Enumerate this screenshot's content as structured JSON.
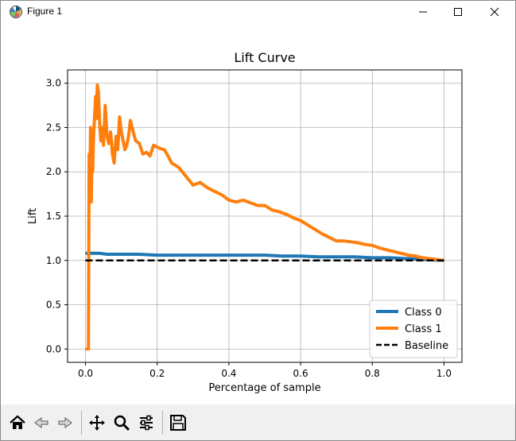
{
  "window": {
    "title": "Figure 1",
    "controls": [
      "minimize-icon",
      "maximize-icon",
      "close-icon"
    ]
  },
  "toolbar": {
    "buttons": [
      {
        "icon": "home-icon"
      },
      {
        "icon": "back-arrow-icon"
      },
      {
        "icon": "forward-arrow-icon"
      },
      {
        "icon": "pan-icon"
      },
      {
        "icon": "zoom-icon"
      },
      {
        "icon": "configure-subplots-icon"
      },
      {
        "icon": "save-icon"
      }
    ]
  },
  "chart_data": {
    "type": "line",
    "title": "Lift Curve",
    "xlabel": "Percentage of sample",
    "ylabel": "Lift",
    "xlim": [
      -0.05,
      1.05
    ],
    "ylim": [
      -0.15,
      3.15
    ],
    "xticks": [
      0.0,
      0.2,
      0.4,
      0.6,
      0.8,
      1.0
    ],
    "xtick_labels": [
      "0.0",
      "0.2",
      "0.4",
      "0.6",
      "0.8",
      "1.0"
    ],
    "yticks": [
      0.0,
      0.5,
      1.0,
      1.5,
      2.0,
      2.5,
      3.0
    ],
    "ytick_labels": [
      "0.0",
      "0.5",
      "1.0",
      "1.5",
      "2.0",
      "2.5",
      "3.0"
    ],
    "grid": true,
    "legend_position": "lower right",
    "series": [
      {
        "name": "Class 0",
        "color": "#1f77b4",
        "style": "solid",
        "x": [
          0.0,
          0.01,
          0.02,
          0.04,
          0.06,
          0.1,
          0.15,
          0.2,
          0.25,
          0.3,
          0.35,
          0.4,
          0.45,
          0.5,
          0.55,
          0.6,
          0.65,
          0.7,
          0.75,
          0.8,
          0.85,
          0.9,
          0.95,
          1.0
        ],
        "y": [
          1.08,
          1.08,
          1.08,
          1.08,
          1.07,
          1.07,
          1.07,
          1.06,
          1.06,
          1.06,
          1.06,
          1.06,
          1.06,
          1.06,
          1.05,
          1.05,
          1.04,
          1.04,
          1.04,
          1.03,
          1.03,
          1.02,
          1.01,
          1.0
        ]
      },
      {
        "name": "Class 1",
        "color": "#ff7f0e",
        "style": "solid",
        "x": [
          0.0,
          0.008,
          0.01,
          0.012,
          0.014,
          0.016,
          0.018,
          0.02,
          0.022,
          0.025,
          0.028,
          0.03,
          0.033,
          0.036,
          0.04,
          0.043,
          0.046,
          0.05,
          0.055,
          0.06,
          0.065,
          0.07,
          0.075,
          0.08,
          0.085,
          0.09,
          0.095,
          0.1,
          0.105,
          0.11,
          0.115,
          0.12,
          0.125,
          0.13,
          0.135,
          0.14,
          0.15,
          0.16,
          0.17,
          0.18,
          0.19,
          0.2,
          0.21,
          0.22,
          0.23,
          0.24,
          0.26,
          0.28,
          0.3,
          0.32,
          0.34,
          0.36,
          0.38,
          0.4,
          0.42,
          0.44,
          0.46,
          0.48,
          0.5,
          0.52,
          0.54,
          0.56,
          0.58,
          0.6,
          0.62,
          0.64,
          0.66,
          0.68,
          0.7,
          0.72,
          0.74,
          0.76,
          0.78,
          0.8,
          0.82,
          0.84,
          0.86,
          0.88,
          0.9,
          0.92,
          0.94,
          0.96,
          0.98,
          1.0
        ],
        "y": [
          0.0,
          0.0,
          2.2,
          1.7,
          2.5,
          1.66,
          2.2,
          2.0,
          2.35,
          2.6,
          2.85,
          2.6,
          2.98,
          2.9,
          2.5,
          2.35,
          2.5,
          2.3,
          2.75,
          2.4,
          2.32,
          2.45,
          2.2,
          2.1,
          2.4,
          2.25,
          2.62,
          2.45,
          2.35,
          2.25,
          2.3,
          2.4,
          2.58,
          2.5,
          2.42,
          2.35,
          2.32,
          2.2,
          2.22,
          2.18,
          2.3,
          2.28,
          2.26,
          2.25,
          2.18,
          2.1,
          2.05,
          1.95,
          1.85,
          1.88,
          1.82,
          1.78,
          1.74,
          1.68,
          1.66,
          1.68,
          1.65,
          1.62,
          1.62,
          1.57,
          1.55,
          1.52,
          1.48,
          1.45,
          1.4,
          1.35,
          1.3,
          1.26,
          1.22,
          1.22,
          1.21,
          1.2,
          1.18,
          1.17,
          1.14,
          1.12,
          1.1,
          1.08,
          1.06,
          1.05,
          1.03,
          1.02,
          1.01,
          1.0
        ]
      },
      {
        "name": "Baseline",
        "color": "#000000",
        "style": "dashed",
        "x": [
          0.0,
          1.0
        ],
        "y": [
          1.0,
          1.0
        ]
      }
    ]
  }
}
